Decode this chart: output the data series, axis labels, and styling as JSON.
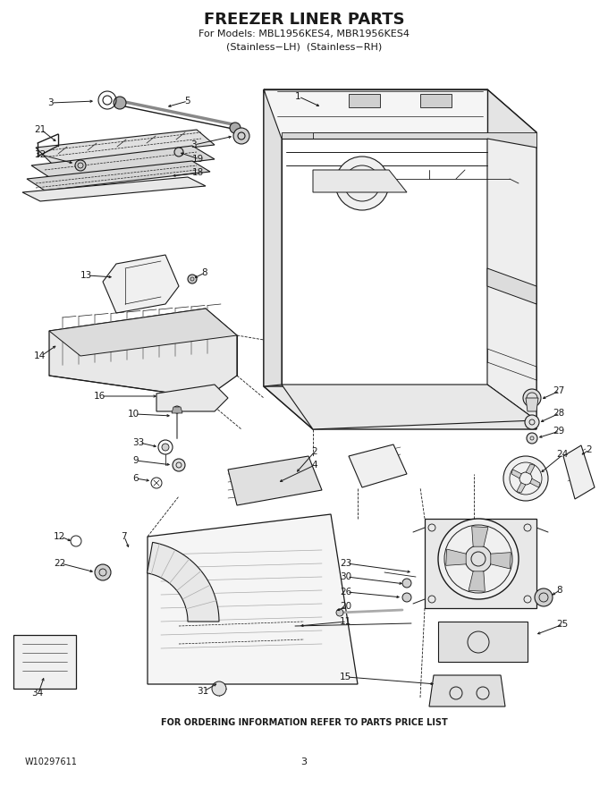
{
  "title": "FREEZER LINER PARTS",
  "subtitle1": "For Models: MBL1956KES4, MBR1956KES4",
  "subtitle2": "(Stainless−LH)  (Stainless−RH)",
  "footer_left": "W10297611",
  "footer_center": "3",
  "footer_note": "FOR ORDERING INFORMATION REFER TO PARTS PRICE LIST",
  "bg_color": "#ffffff",
  "line_color": "#1a1a1a",
  "fig_width": 6.8,
  "fig_height": 8.8,
  "dpi": 100
}
